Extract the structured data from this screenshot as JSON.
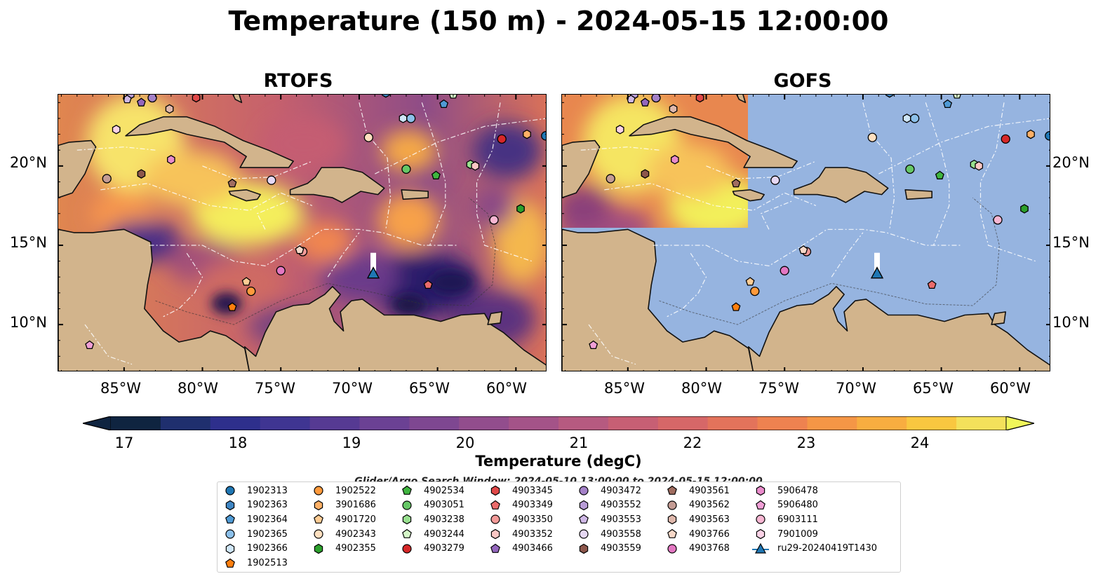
{
  "title": "Temperature (150 m) - 2024-05-15 12:00:00",
  "panels": [
    {
      "title": "RTOFS"
    },
    {
      "title": "GOFS"
    }
  ],
  "lat_labels": [
    "20°N",
    "15°N",
    "10°N"
  ],
  "lon_labels": [
    "85°W",
    "80°W",
    "75°W",
    "70°W",
    "65°W",
    "60°W"
  ],
  "colorbar": {
    "label": "Temperature (degC)",
    "ticks": [
      "17",
      "18",
      "19",
      "20",
      "21",
      "22",
      "23",
      "24"
    ],
    "min": 16.5,
    "max": 25.0,
    "extend": "both"
  },
  "search_window": "Glider/Argo Search Window: 2024-05-10 13:00:00 to 2024-05-15 12:00:00",
  "colors": {
    "ocean": "#96b4e0",
    "land": "#d2b48c",
    "glider": "#1f77b4"
  },
  "legend": [
    {
      "label": "1902313",
      "marker": "circle",
      "color": "#1f77b4"
    },
    {
      "label": "1902363",
      "marker": "hexagon",
      "color": "#3f86c4"
    },
    {
      "label": "1902364",
      "marker": "pentagon",
      "color": "#4f9ad4"
    },
    {
      "label": "1902365",
      "marker": "circle",
      "color": "#8cc0ea"
    },
    {
      "label": "1902366",
      "marker": "hexagon",
      "color": "#cfe6f8"
    },
    {
      "label": "1902513",
      "marker": "pentagon",
      "color": "#ff7f0e"
    },
    {
      "label": "1902522",
      "marker": "circle",
      "color": "#ff9a3c"
    },
    {
      "label": "3901686",
      "marker": "hexagon",
      "color": "#ffb066"
    },
    {
      "label": "4901720",
      "marker": "pentagon",
      "color": "#ffcc94"
    },
    {
      "label": "4902343",
      "marker": "circle",
      "color": "#ffe0c0"
    },
    {
      "label": "4902355",
      "marker": "hexagon",
      "color": "#2ca02c"
    },
    {
      "label": "4902534",
      "marker": "pentagon",
      "color": "#3fb53f"
    },
    {
      "label": "4903051",
      "marker": "circle",
      "color": "#66c766"
    },
    {
      "label": "4903238",
      "marker": "hexagon",
      "color": "#98e08f"
    },
    {
      "label": "4903244",
      "marker": "pentagon",
      "color": "#d5f7c8"
    },
    {
      "label": "4903279",
      "marker": "circle",
      "color": "#d62728"
    },
    {
      "label": "4903345",
      "marker": "hexagon",
      "color": "#e04848"
    },
    {
      "label": "4903349",
      "marker": "pentagon",
      "color": "#ea6b6b"
    },
    {
      "label": "4903350",
      "marker": "circle",
      "color": "#f39a98"
    },
    {
      "label": "4903352",
      "marker": "hexagon",
      "color": "#fbc7c4"
    },
    {
      "label": "4903466",
      "marker": "pentagon",
      "color": "#9467bd"
    },
    {
      "label": "4903472",
      "marker": "circle",
      "color": "#a481c8"
    },
    {
      "label": "4903552",
      "marker": "hexagon",
      "color": "#b89cd6"
    },
    {
      "label": "4903553",
      "marker": "pentagon",
      "color": "#cfb8e6"
    },
    {
      "label": "4903558",
      "marker": "circle",
      "color": "#e6d8f4"
    },
    {
      "label": "4903559",
      "marker": "hexagon",
      "color": "#8c564b"
    },
    {
      "label": "4903561",
      "marker": "pentagon",
      "color": "#a06d60"
    },
    {
      "label": "4903562",
      "marker": "circle",
      "color": "#c49c94"
    },
    {
      "label": "4903563",
      "marker": "hexagon",
      "color": "#dfb8ac"
    },
    {
      "label": "4903766",
      "marker": "pentagon",
      "color": "#f7d8c8"
    },
    {
      "label": "4903768",
      "marker": "circle",
      "color": "#e377c2"
    },
    {
      "label": "5906478",
      "marker": "hexagon",
      "color": "#e98bcb"
    },
    {
      "label": "5906480",
      "marker": "pentagon",
      "color": "#f09fd6"
    },
    {
      "label": "6903111",
      "marker": "circle",
      "color": "#f7b6d2"
    },
    {
      "label": "7901009",
      "marker": "hexagon",
      "color": "#fbd2e6"
    },
    {
      "label": "ru29-20240419T1430",
      "marker": "glider",
      "color": "#1f77b4"
    }
  ],
  "floats": [
    {
      "id": "1902313",
      "lon": -58.1,
      "lat": 21.9
    },
    {
      "id": "1902363",
      "lon": -68.3,
      "lat": 24.6
    },
    {
      "id": "1902364",
      "lon": -64.6,
      "lat": 23.9
    },
    {
      "id": "1902365",
      "lon": -66.7,
      "lat": 23.0
    },
    {
      "id": "1902366",
      "lon": -67.2,
      "lat": 23.0
    },
    {
      "id": "1902513",
      "lon": -78.1,
      "lat": 11.1
    },
    {
      "id": "1902522",
      "lon": -76.9,
      "lat": 12.1
    },
    {
      "id": "3901686",
      "lon": -59.3,
      "lat": 22.0
    },
    {
      "id": "4901720",
      "lon": -77.2,
      "lat": 12.7
    },
    {
      "id": "4902343",
      "lon": -69.4,
      "lat": 21.8
    },
    {
      "id": "4902355",
      "lon": -59.7,
      "lat": 17.3
    },
    {
      "id": "4902534",
      "lon": -65.1,
      "lat": 19.4
    },
    {
      "id": "4903051",
      "lon": -67.0,
      "lat": 19.8
    },
    {
      "id": "4903238",
      "lon": -62.9,
      "lat": 20.1
    },
    {
      "id": "4903244",
      "lon": -64.0,
      "lat": 24.5
    },
    {
      "id": "4903279",
      "lon": -60.9,
      "lat": 21.7
    },
    {
      "id": "4903345",
      "lon": -80.4,
      "lat": 24.3
    },
    {
      "id": "4903349",
      "lon": -65.6,
      "lat": 12.5
    },
    {
      "id": "4903350",
      "lon": -73.6,
      "lat": 14.6
    },
    {
      "id": "4903352",
      "lon": -62.6,
      "lat": 20.0
    },
    {
      "id": "4903466",
      "lon": -83.9,
      "lat": 24.0
    },
    {
      "id": "4903472",
      "lon": -83.2,
      "lat": 24.3
    },
    {
      "id": "4903552",
      "lon": -84.6,
      "lat": 24.5
    },
    {
      "id": "4903553",
      "lon": -84.8,
      "lat": 24.2
    },
    {
      "id": "4903558",
      "lon": -75.6,
      "lat": 19.1
    },
    {
      "id": "4903559",
      "lon": -83.9,
      "lat": 19.5
    },
    {
      "id": "4903561",
      "lon": -78.1,
      "lat": 18.9
    },
    {
      "id": "4903562",
      "lon": -86.1,
      "lat": 19.2
    },
    {
      "id": "4903563",
      "lon": -82.1,
      "lat": 23.6
    },
    {
      "id": "4903766",
      "lon": -73.8,
      "lat": 14.7
    },
    {
      "id": "4903768",
      "lon": -75.0,
      "lat": 13.4
    },
    {
      "id": "5906478",
      "lon": -82.0,
      "lat": 20.4
    },
    {
      "id": "5906480",
      "lon": -87.2,
      "lat": 8.7
    },
    {
      "id": "6903111",
      "lon": -61.4,
      "lat": 16.6
    },
    {
      "id": "7901009",
      "lon": -85.5,
      "lat": 22.3
    }
  ],
  "glider": {
    "id": "ru29-20240419T1430",
    "lon": -69.1,
    "lat": 13.2
  }
}
